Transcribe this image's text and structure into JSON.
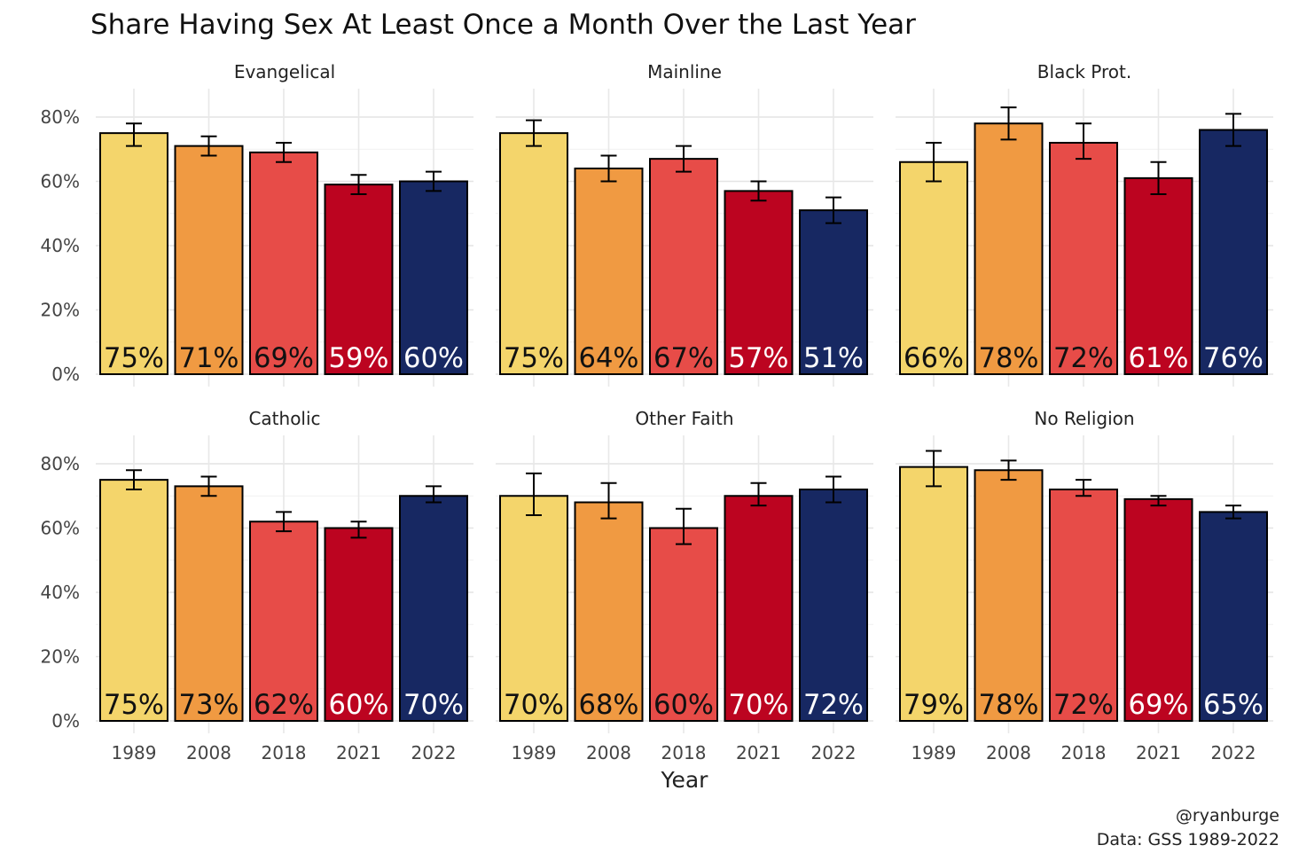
{
  "chart_data": {
    "type": "bar",
    "title": "Share Having Sex At Least Once a Month Over the Last Year",
    "xlabel": "Year",
    "ylabel": "",
    "categories": [
      "1989",
      "2008",
      "2018",
      "2021",
      "2022"
    ],
    "ylim": [
      0,
      0.88
    ],
    "y_ticks": [
      0,
      0.2,
      0.4,
      0.6,
      0.8
    ],
    "y_tick_labels": [
      "0%",
      "20%",
      "40%",
      "60%",
      "80%"
    ],
    "grid": true,
    "legend": "none",
    "colors": [
      "#F4D56B",
      "#F09A42",
      "#E74C48",
      "#BC0420",
      "#172862"
    ],
    "label_colors": [
      "#111111",
      "#111111",
      "#111111",
      "#ffffff",
      "#ffffff"
    ],
    "facets": [
      {
        "name": "Evangelical",
        "values": [
          0.75,
          0.71,
          0.69,
          0.59,
          0.6
        ],
        "labels": [
          "75%",
          "71%",
          "69%",
          "59%",
          "60%"
        ],
        "err_low": [
          0.71,
          0.68,
          0.66,
          0.56,
          0.57
        ],
        "err_high": [
          0.78,
          0.74,
          0.72,
          0.62,
          0.63
        ]
      },
      {
        "name": "Mainline",
        "values": [
          0.75,
          0.64,
          0.67,
          0.57,
          0.51
        ],
        "labels": [
          "75%",
          "64%",
          "67%",
          "57%",
          "51%"
        ],
        "err_low": [
          0.71,
          0.6,
          0.63,
          0.54,
          0.47
        ],
        "err_high": [
          0.79,
          0.68,
          0.71,
          0.6,
          0.55
        ]
      },
      {
        "name": "Black Prot.",
        "values": [
          0.66,
          0.78,
          0.72,
          0.61,
          0.76
        ],
        "labels": [
          "66%",
          "78%",
          "72%",
          "61%",
          "76%"
        ],
        "err_low": [
          0.6,
          0.73,
          0.67,
          0.56,
          0.71
        ],
        "err_high": [
          0.72,
          0.83,
          0.78,
          0.66,
          0.81
        ]
      },
      {
        "name": "Catholic",
        "values": [
          0.75,
          0.73,
          0.62,
          0.6,
          0.7
        ],
        "labels": [
          "75%",
          "73%",
          "62%",
          "60%",
          "70%"
        ],
        "err_low": [
          0.72,
          0.7,
          0.59,
          0.57,
          0.68
        ],
        "err_high": [
          0.78,
          0.76,
          0.65,
          0.62,
          0.73
        ]
      },
      {
        "name": "Other Faith",
        "values": [
          0.7,
          0.68,
          0.6,
          0.7,
          0.72
        ],
        "labels": [
          "70%",
          "68%",
          "60%",
          "70%",
          "72%"
        ],
        "err_low": [
          0.64,
          0.63,
          0.55,
          0.67,
          0.68
        ],
        "err_high": [
          0.77,
          0.74,
          0.66,
          0.74,
          0.76
        ]
      },
      {
        "name": "No Religion",
        "values": [
          0.79,
          0.78,
          0.72,
          0.69,
          0.65
        ],
        "labels": [
          "79%",
          "78%",
          "72%",
          "69%",
          "65%"
        ],
        "err_low": [
          0.73,
          0.75,
          0.7,
          0.67,
          0.63
        ],
        "err_high": [
          0.84,
          0.81,
          0.75,
          0.7,
          0.67
        ]
      }
    ],
    "caption": [
      "@ryanburge",
      "Data: GSS 1989-2022"
    ]
  }
}
